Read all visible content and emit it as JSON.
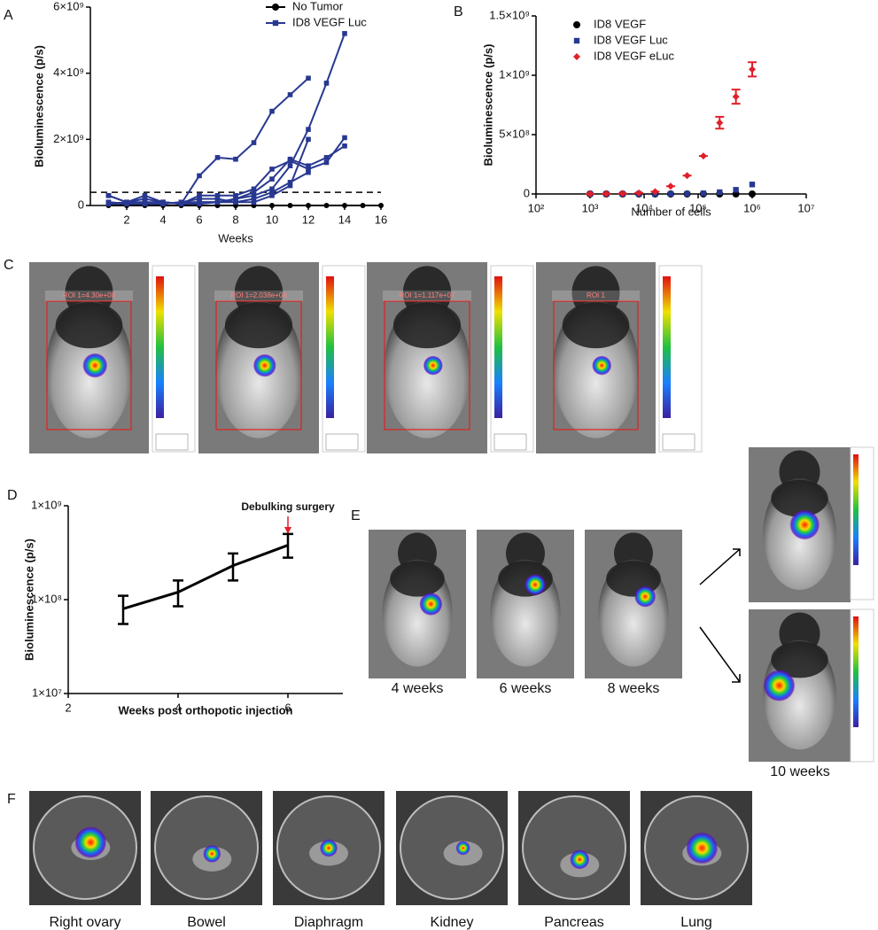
{
  "chart_data": [
    {
      "type": "line",
      "ylabel": "Bioluminescence (p/s)",
      "xlabel": "Weeks",
      "xlim": [
        0,
        16
      ],
      "xticks": [
        2,
        4,
        6,
        8,
        10,
        12,
        14,
        16
      ],
      "ylim": [
        0,
        6000000000
      ],
      "yticks": [
        0,
        {
          "value": 2000000000,
          "label": "2×10⁹"
        },
        {
          "value": 4000000000,
          "label": "4×10⁹"
        },
        {
          "value": 6000000000,
          "label": "6×10⁹"
        }
      ],
      "threshold": 400000000,
      "x": [
        1,
        2,
        3,
        4,
        5,
        6,
        7,
        8,
        9,
        10,
        11,
        12,
        13,
        14,
        15,
        16
      ],
      "series": [
        {
          "name": "No Tumor",
          "color": "#000000",
          "marker": "circle",
          "lines": [
            [
              0,
              0,
              0,
              0,
              0,
              0,
              0,
              0,
              0,
              0,
              0,
              0,
              0,
              0,
              0,
              0
            ]
          ]
        },
        {
          "name": "ID8 VEGF Luc",
          "color": "#283891",
          "marker": "square",
          "lines": [
            [
              300000000,
              100000000,
              300000000,
              100000000,
              50000000,
              100000000,
              100000000,
              200000000,
              300000000,
              500000000,
              1200000000,
              2300000000,
              3700000000,
              5200000000,
              null,
              null
            ],
            [
              300000000,
              100000000,
              200000000,
              100000000,
              50000000,
              900000000,
              1450000000,
              1400000000,
              1900000000,
              2850000000,
              3350000000,
              3850000000,
              null,
              null,
              null,
              null
            ],
            [
              100000000,
              50000000,
              50000000,
              100000000,
              50000000,
              300000000,
              300000000,
              300000000,
              500000000,
              1100000000,
              1350000000,
              1100000000,
              1300000000,
              2050000000,
              null,
              null
            ],
            [
              50000000,
              100000000,
              100000000,
              50000000,
              100000000,
              100000000,
              100000000,
              200000000,
              400000000,
              800000000,
              1400000000,
              1200000000,
              1450000000,
              1800000000,
              null,
              null
            ],
            [
              100000000,
              50000000,
              100000000,
              100000000,
              50000000,
              50000000,
              100000000,
              100000000,
              100000000,
              300000000,
              600000000,
              2000000000,
              null,
              null,
              null,
              null
            ],
            [
              50000000,
              50000000,
              50000000,
              50000000,
              100000000,
              200000000,
              200000000,
              100000000,
              200000000,
              400000000,
              700000000,
              1000000000,
              null,
              null,
              null,
              null
            ]
          ]
        }
      ]
    },
    {
      "type": "scatter",
      "ylabel": "Bioluminescence (p/s)",
      "xlabel": "Number of cells",
      "xscale": "log",
      "xlim": [
        100,
        10000000
      ],
      "xticks": [
        {
          "value": 100,
          "label": "10²"
        },
        {
          "value": 1000,
          "label": "10³"
        },
        {
          "value": 10000,
          "label": "10⁴"
        },
        {
          "value": 100000,
          "label": "10⁵"
        },
        {
          "value": 1000000,
          "label": "10⁶"
        },
        {
          "value": 10000000,
          "label": "10⁷"
        }
      ],
      "ylim": [
        0,
        1500000000
      ],
      "yticks": [
        0,
        {
          "value": 500000000,
          "label": "5×10⁸"
        },
        {
          "value": 1000000000,
          "label": "1×10⁹"
        },
        {
          "value": 1500000000,
          "label": "1.5×10⁹"
        }
      ],
      "x": [
        1000,
        2000,
        4000,
        8000,
        16000,
        31000,
        62500,
        125000,
        250000,
        500000,
        1000000
      ],
      "series": [
        {
          "name": "ID8 VEGF",
          "color": "#000000",
          "marker": "circle",
          "values": [
            0,
            0,
            0,
            0,
            0,
            0,
            0,
            0,
            0,
            0,
            0
          ]
        },
        {
          "name": "ID8 VEGF Luc",
          "color": "#283891",
          "marker": "square",
          "values": [
            0,
            0,
            0,
            0,
            0,
            1000000,
            2000000,
            5000000,
            15000000,
            35000000,
            80000000
          ]
        },
        {
          "name": "ID8 VEGF eLuc",
          "color": "#e0202a",
          "marker": "diamond",
          "values": [
            1000000,
            2000000,
            4000000,
            8000000,
            20000000,
            65000000,
            155000000,
            320000000,
            600000000,
            820000000,
            1050000000
          ],
          "errors": [
            0,
            0,
            0,
            0,
            0,
            0,
            0,
            0,
            50000000,
            60000000,
            60000000
          ]
        }
      ]
    },
    {
      "type": "line",
      "ylabel": "Bioluminescence (p/s)",
      "xlabel": "Weeks post orthopotic injection",
      "yscale": "log",
      "xlim": [
        2,
        7
      ],
      "xticks": [
        2,
        4,
        6
      ],
      "ylim": [
        10000000,
        1000000000
      ],
      "yticks": [
        {
          "value": 10000000,
          "label": "1×10⁷"
        },
        {
          "value": 100000000,
          "label": "1×10⁸"
        },
        {
          "value": 1000000000,
          "label": "1×10⁹"
        }
      ],
      "annotation": {
        "text": "Debulking surgery",
        "x": 6
      },
      "x": [
        3,
        4,
        5,
        6
      ],
      "series": [
        {
          "name": null,
          "color": "#000000",
          "marker": "none",
          "lines": [
            [
              80000000,
              120000000,
              230000000,
              380000000
            ]
          ],
          "lower": [
            55000000,
            85000000,
            160000000,
            280000000
          ],
          "upper": [
            110000000,
            160000000,
            310000000,
            500000000
          ]
        }
      ]
    }
  ],
  "panel_letters": [
    "A",
    "B",
    "C",
    "D",
    "E",
    "F"
  ],
  "panel_c": {
    "roi_labels": [
      "ROI 1=4.30e+08",
      "ROI 1=2.038e+08",
      "ROI 1=1.117e+07",
      "ROI 1"
    ]
  },
  "panel_e": {
    "captions": [
      "4 weeks",
      "6 weeks",
      "8 weeks",
      "10 weeks"
    ]
  },
  "panel_f": {
    "captions": [
      "Right ovary",
      "Bowel",
      "Diaphragm",
      "Kidney",
      "Pancreas",
      "Lung"
    ]
  }
}
